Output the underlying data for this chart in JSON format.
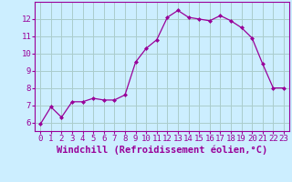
{
  "x": [
    0,
    1,
    2,
    3,
    4,
    5,
    6,
    7,
    8,
    9,
    10,
    11,
    12,
    13,
    14,
    15,
    16,
    17,
    18,
    19,
    20,
    21,
    22,
    23
  ],
  "y": [
    5.9,
    6.9,
    6.3,
    7.2,
    7.2,
    7.4,
    7.3,
    7.3,
    7.6,
    9.5,
    10.3,
    10.8,
    12.1,
    12.5,
    12.1,
    12.0,
    11.9,
    12.2,
    11.9,
    11.5,
    10.9,
    9.4,
    8.0,
    8.0
  ],
  "line_color": "#990099",
  "marker": "D",
  "marker_size": 2,
  "background_color": "#cceeff",
  "grid_color": "#aacccc",
  "xlabel": "Windchill (Refroidissement éolien,°C)",
  "ylabel": "",
  "title": "",
  "xlim": [
    -0.5,
    23.5
  ],
  "ylim": [
    5.5,
    13.0
  ],
  "yticks": [
    6,
    7,
    8,
    9,
    10,
    11,
    12
  ],
  "xtick_labels": [
    "0",
    "1",
    "2",
    "3",
    "4",
    "5",
    "6",
    "7",
    "8",
    "9",
    "10",
    "11",
    "12",
    "13",
    "14",
    "15",
    "16",
    "17",
    "18",
    "19",
    "20",
    "21",
    "22",
    "23"
  ],
  "font_color": "#990099",
  "tick_fontsize": 6.5,
  "label_fontsize": 7.5
}
